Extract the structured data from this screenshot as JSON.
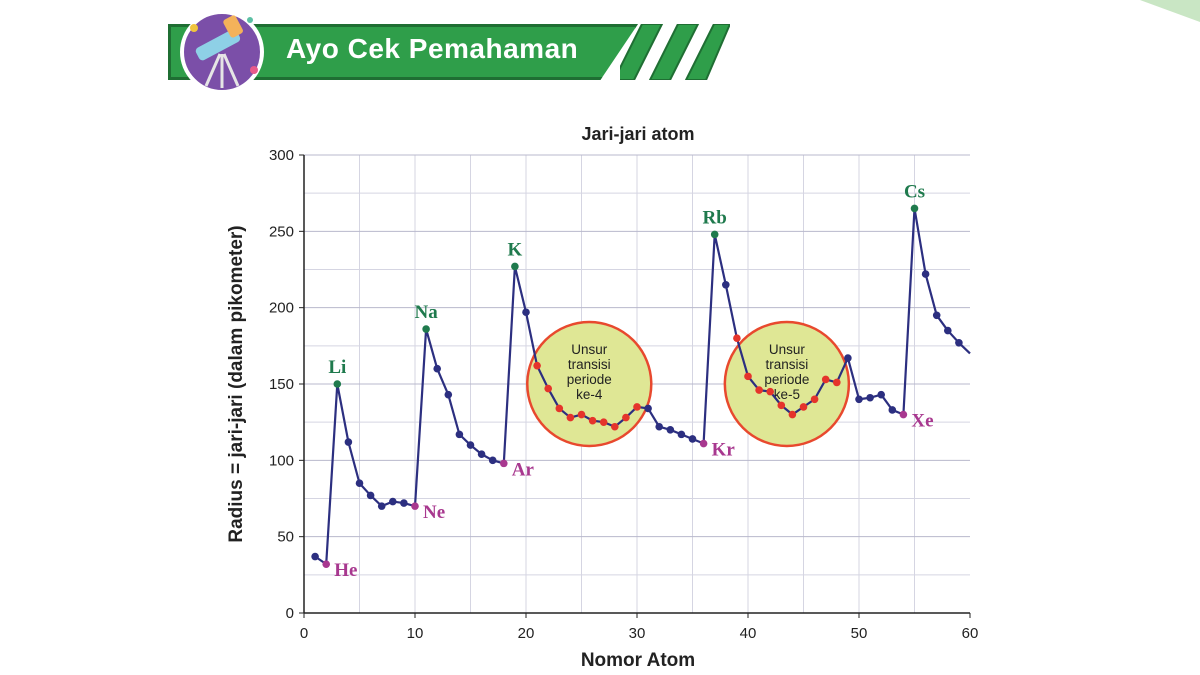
{
  "header": {
    "title": "Ayo Cek Pemahaman",
    "icon": "telescope-icon",
    "banner_color": "#2f9e4a"
  },
  "chart_data": {
    "type": "line",
    "title": "Jari-jari atom",
    "xlabel": "Nomor Atom",
    "ylabel": "Radius = jari-jari (dalam pikometer)",
    "xlim": [
      0,
      60
    ],
    "ylim": [
      0,
      300
    ],
    "xticks": [
      "0",
      "10",
      "20",
      "30",
      "40",
      "50",
      "60"
    ],
    "yticks": [
      "0",
      "50",
      "100",
      "150",
      "200",
      "250",
      "300"
    ],
    "grid": true,
    "line_color": "#2c2f80",
    "x": [
      1,
      2,
      3,
      4,
      5,
      6,
      7,
      8,
      9,
      10,
      11,
      12,
      13,
      14,
      15,
      16,
      17,
      18,
      19,
      20,
      21,
      22,
      23,
      24,
      25,
      26,
      27,
      28,
      29,
      30,
      31,
      32,
      33,
      34,
      35,
      36,
      37,
      38,
      39,
      40,
      41,
      42,
      43,
      44,
      45,
      46,
      47,
      48,
      49,
      50,
      51,
      52,
      53,
      54,
      55,
      56,
      57,
      58,
      59,
      60
    ],
    "values": [
      37,
      32,
      150,
      112,
      85,
      77,
      70,
      73,
      72,
      70,
      186,
      160,
      143,
      117,
      110,
      104,
      100,
      98,
      227,
      197,
      162,
      147,
      134,
      128,
      130,
      126,
      125,
      122,
      128,
      135,
      134,
      122,
      120,
      117,
      114,
      111,
      248,
      215,
      180,
      155,
      146,
      145,
      136,
      130,
      135,
      140,
      153,
      151,
      167,
      140,
      141,
      143,
      133,
      130,
      265,
      222,
      195,
      185,
      177,
      170
    ],
    "transition_color": "#e5342b",
    "transition_ranges": [
      [
        21,
        30
      ],
      [
        39,
        48
      ]
    ],
    "labels": [
      {
        "x": 3,
        "text": "Li",
        "group": "alkali"
      },
      {
        "x": 11,
        "text": "Na",
        "group": "alkali"
      },
      {
        "x": 19,
        "text": "K",
        "group": "alkali"
      },
      {
        "x": 37,
        "text": "Rb",
        "group": "alkali"
      },
      {
        "x": 55,
        "text": "Cs",
        "group": "alkali"
      },
      {
        "x": 2,
        "text": "He",
        "group": "noble"
      },
      {
        "x": 10,
        "text": "Ne",
        "group": "noble"
      },
      {
        "x": 18,
        "text": "Ar",
        "group": "noble"
      },
      {
        "x": 36,
        "text": "Kr",
        "group": "noble"
      },
      {
        "x": 54,
        "text": "Xe",
        "group": "noble"
      }
    ],
    "alkali_color": "#1f7a4d",
    "noble_color": "#a8388f",
    "annotations": [
      {
        "cx": 25.7,
        "cy": 150,
        "lines": [
          "Unsur",
          "transisi",
          "periode",
          "ke-4"
        ]
      },
      {
        "cx": 43.5,
        "cy": 150,
        "lines": [
          "Unsur",
          "transisi",
          "periode",
          "ke-5"
        ]
      }
    ],
    "annotation_fill": "#dfe795",
    "annotation_stroke": "#e8492e"
  }
}
